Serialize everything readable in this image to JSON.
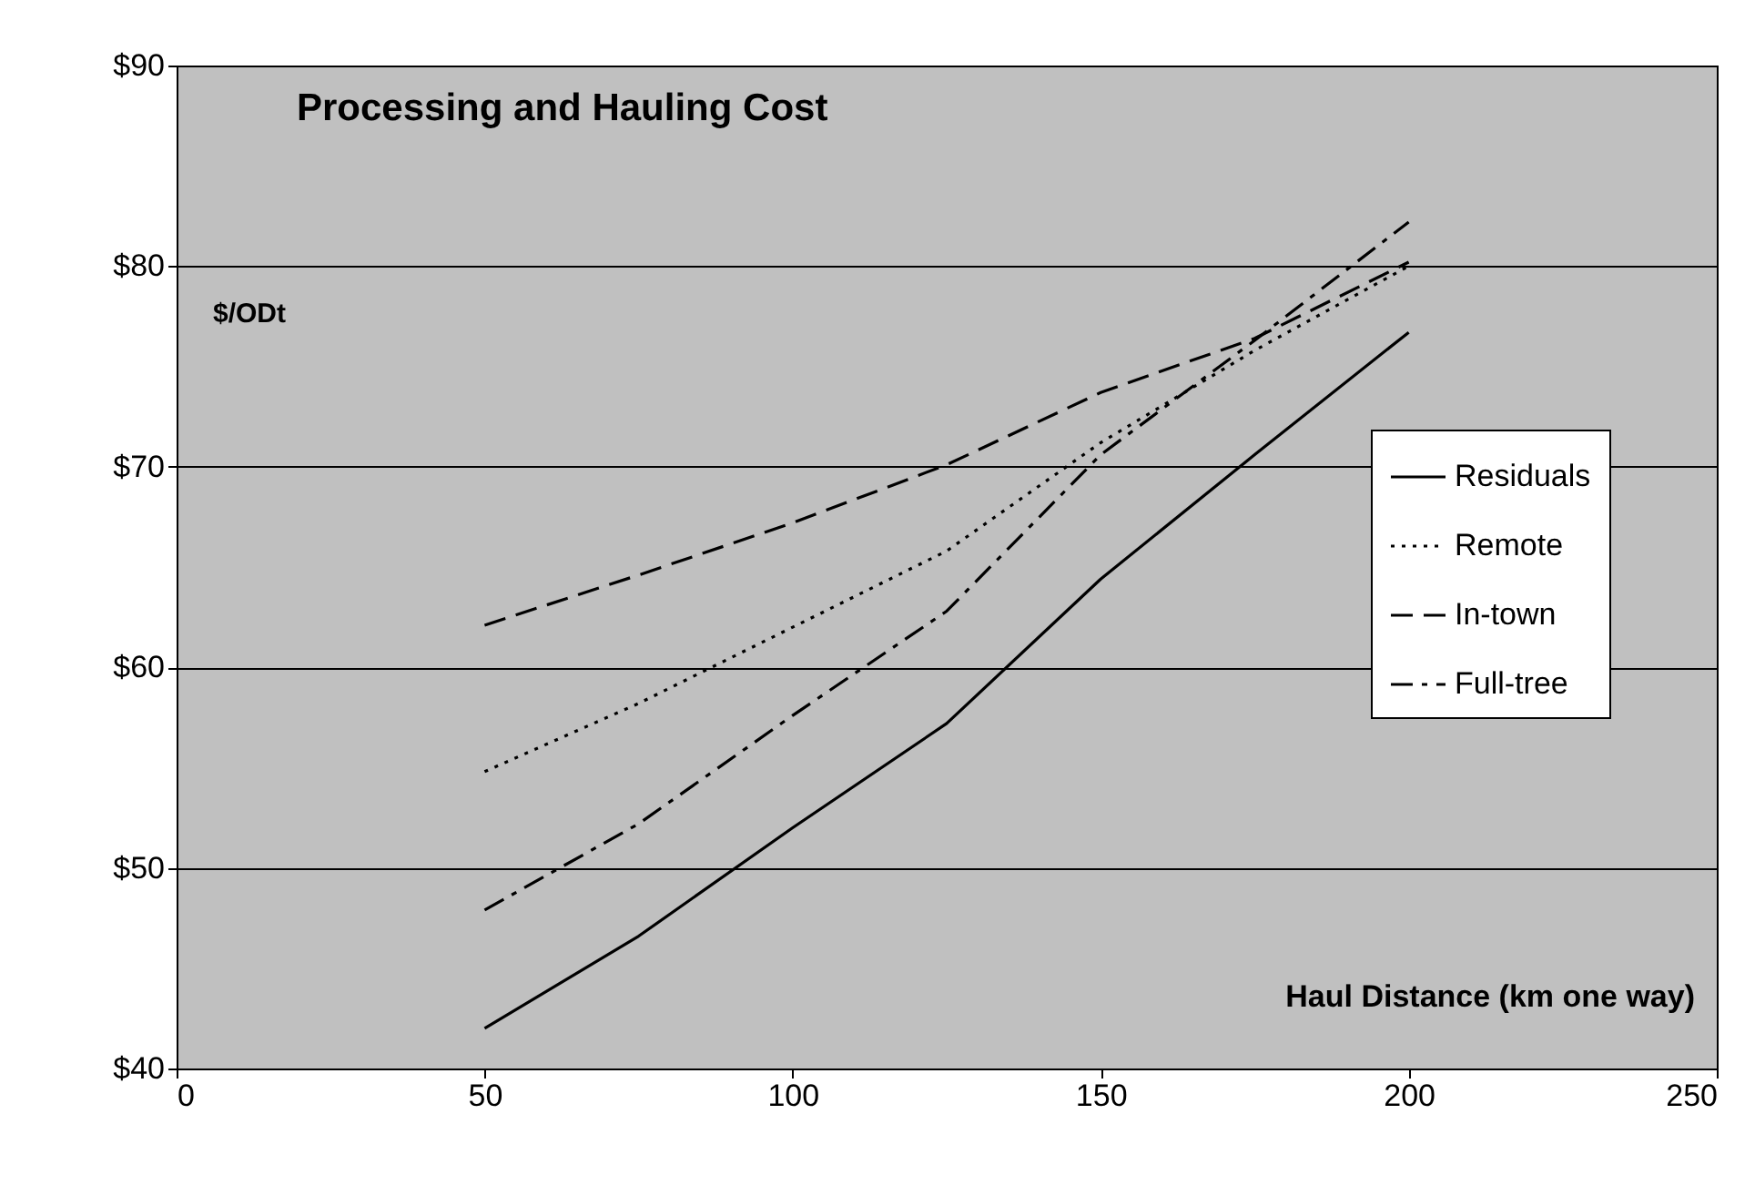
{
  "chart_data": {
    "type": "line",
    "title": "Processing and Hauling Cost",
    "xlabel": "Haul Distance (km one way)",
    "ylabel": "$/ODt",
    "x": [
      50,
      75,
      100,
      125,
      150,
      175,
      200
    ],
    "series": [
      {
        "name": "Residuals",
        "color": "#000000",
        "line_style": "solid",
        "values": [
          42.0,
          46.6,
          52.0,
          57.2,
          64.4,
          70.6,
          76.7
        ]
      },
      {
        "name": "Remote",
        "color": "#000000",
        "line_style": "dotted",
        "values": [
          54.8,
          58.2,
          62.0,
          65.8,
          71.2,
          75.8,
          80.0
        ]
      },
      {
        "name": "In-town",
        "color": "#000000",
        "line_style": "dashed",
        "values": [
          62.1,
          64.6,
          67.2,
          70.1,
          73.7,
          76.4,
          80.2
        ]
      },
      {
        "name": "Full-tree",
        "color": "#000000",
        "line_style": "dashdot",
        "values": [
          47.9,
          52.2,
          57.6,
          62.8,
          70.6,
          76.3,
          82.2
        ]
      }
    ],
    "xlim": [
      0,
      250
    ],
    "xticks": [
      0,
      50,
      100,
      150,
      200,
      250
    ],
    "ylim": [
      40,
      90
    ],
    "yticks": [
      {
        "value": 40,
        "label": "$40"
      },
      {
        "value": 50,
        "label": "$50"
      },
      {
        "value": 60,
        "label": "$60"
      },
      {
        "value": 70,
        "label": "$70"
      },
      {
        "value": 80,
        "label": "$80"
      },
      {
        "value": 90,
        "label": "$90"
      }
    ],
    "grid": "y",
    "legend": "right",
    "marker": "none"
  }
}
